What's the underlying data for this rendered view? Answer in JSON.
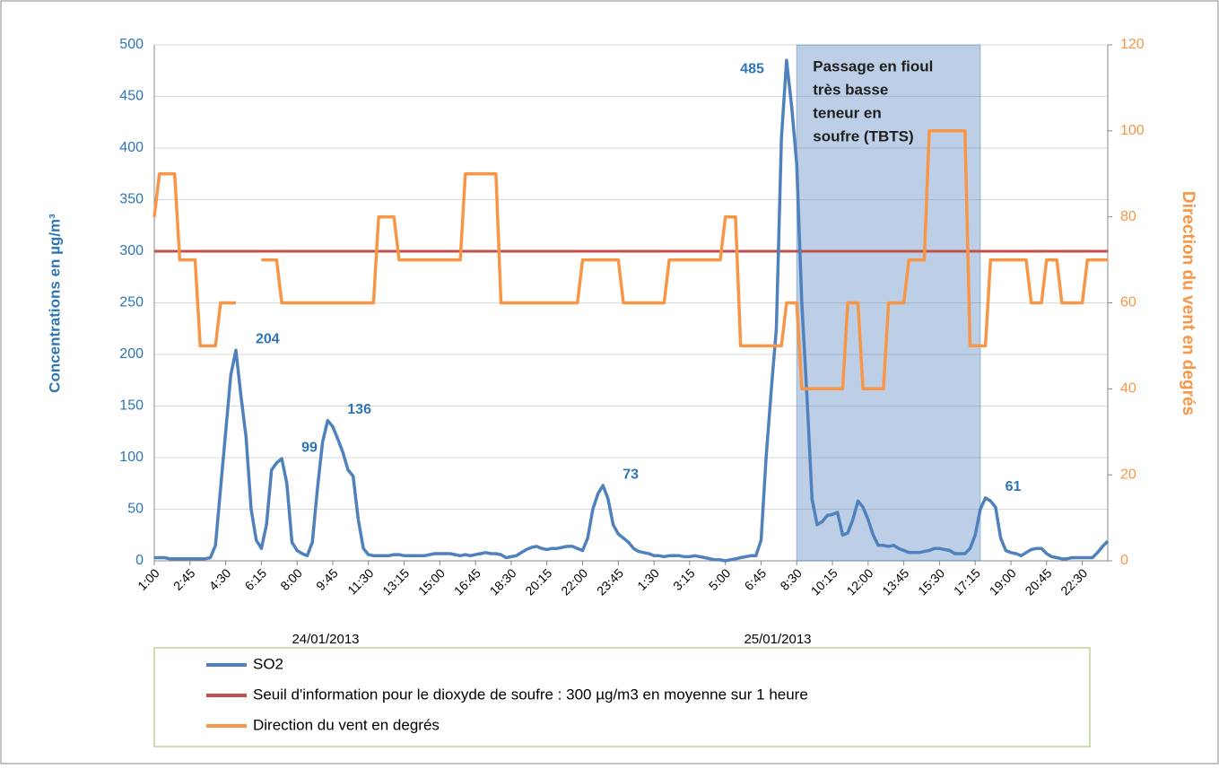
{
  "chart_data": {
    "type": "line",
    "y_label": "Concentrations en µg/m³",
    "y2_label": "Direction du vent en degrés",
    "categories": [
      "1:00",
      null,
      null,
      null,
      null,
      null,
      null,
      "2:45",
      null,
      null,
      null,
      null,
      null,
      null,
      "4:30",
      null,
      null,
      null,
      null,
      null,
      null,
      "6:15",
      null,
      null,
      null,
      null,
      null,
      null,
      "8:00",
      null,
      null,
      null,
      null,
      null,
      null,
      "9:45",
      null,
      null,
      null,
      null,
      null,
      null,
      "11:30",
      null,
      null,
      null,
      null,
      null,
      null,
      "13:15",
      null,
      null,
      null,
      null,
      null,
      null,
      "15:00",
      null,
      null,
      null,
      null,
      null,
      null,
      "16:45",
      null,
      null,
      null,
      null,
      null,
      null,
      "18:30",
      null,
      null,
      null,
      null,
      null,
      null,
      "20:15",
      null,
      null,
      null,
      null,
      null,
      null,
      "22:00",
      null,
      null,
      null,
      null,
      null,
      null,
      "23:45",
      null,
      null,
      null,
      null,
      null,
      null,
      "1:30",
      null,
      null,
      null,
      null,
      null,
      null,
      "3:15",
      null,
      null,
      null,
      null,
      null,
      null,
      "5:00",
      null,
      null,
      null,
      null,
      null,
      null,
      "6:45",
      null,
      null,
      null,
      null,
      null,
      null,
      "8:30",
      null,
      null,
      null,
      null,
      null,
      null,
      "10:15",
      null,
      null,
      null,
      null,
      null,
      null,
      "12:00",
      null,
      null,
      null,
      null,
      null,
      null,
      "13:45",
      null,
      null,
      null,
      null,
      null,
      null,
      "15:30",
      null,
      null,
      null,
      null,
      null,
      null,
      "17:15",
      null,
      null,
      null,
      null,
      null,
      null,
      "19:00",
      null,
      null,
      null,
      null,
      null,
      null,
      "20:45",
      null,
      null,
      null,
      null,
      null,
      null,
      "22:30",
      null,
      null,
      null,
      null,
      null
    ],
    "date_labels": [
      "24/01/2013",
      "25/01/2013"
    ],
    "series": [
      {
        "name": "SO2",
        "color": "#4f81bd",
        "axis": "y",
        "labeled_points": [
          16,
          25,
          34,
          88,
          124,
          163
        ],
        "values": [
          3,
          3,
          3,
          2,
          2,
          2,
          2,
          2,
          2,
          2,
          2,
          3,
          15,
          70,
          125,
          180,
          204,
          160,
          120,
          50,
          20,
          12,
          35,
          88,
          95,
          99,
          75,
          18,
          10,
          7,
          5,
          18,
          70,
          115,
          136,
          130,
          118,
          105,
          88,
          82,
          40,
          12,
          6,
          5,
          5,
          5,
          5,
          6,
          6,
          5,
          5,
          5,
          5,
          5,
          6,
          7,
          7,
          7,
          7,
          6,
          5,
          6,
          5,
          6,
          7,
          8,
          7,
          7,
          6,
          3,
          4,
          5,
          8,
          11,
          13,
          14,
          12,
          11,
          12,
          12,
          13,
          14,
          14,
          12,
          10,
          22,
          50,
          65,
          73,
          60,
          35,
          26,
          22,
          18,
          12,
          9,
          8,
          7,
          5,
          5,
          4,
          5,
          5,
          5,
          4,
          4,
          5,
          4,
          3,
          2,
          1,
          1,
          0,
          1,
          2,
          3,
          4,
          5,
          5,
          20,
          100,
          165,
          225,
          410,
          485,
          440,
          385,
          250,
          160,
          60,
          35,
          38,
          44,
          45,
          47,
          25,
          27,
          40,
          58,
          52,
          40,
          25,
          15,
          15,
          14,
          15,
          12,
          10,
          8,
          8,
          8,
          9,
          10,
          12,
          12,
          11,
          10,
          7,
          7,
          7,
          12,
          25,
          50,
          61,
          58,
          52,
          22,
          10,
          8,
          7,
          5,
          8,
          11,
          12,
          12,
          7,
          4,
          3,
          2,
          2,
          3,
          3,
          3,
          3,
          3,
          8,
          14,
          19
        ]
      },
      {
        "name": "Direction du vent en degrés",
        "color": "#f79646",
        "axis": "y2",
        "values": [
          80,
          90,
          90,
          90,
          90,
          70,
          70,
          70,
          70,
          50,
          50,
          50,
          50,
          60,
          60,
          60,
          60,
          null,
          null,
          null,
          null,
          70,
          70,
          70,
          70,
          60,
          60,
          60,
          60,
          60,
          60,
          60,
          60,
          60,
          60,
          60,
          60,
          60,
          60,
          60,
          60,
          60,
          60,
          60,
          80,
          80,
          80,
          80,
          70,
          70,
          70,
          70,
          70,
          70,
          70,
          70,
          70,
          70,
          70,
          70,
          70,
          90,
          90,
          90,
          90,
          90,
          90,
          90,
          60,
          60,
          60,
          60,
          60,
          60,
          60,
          60,
          60,
          60,
          60,
          60,
          60,
          60,
          60,
          60,
          70,
          70,
          70,
          70,
          70,
          70,
          70,
          70,
          60,
          60,
          60,
          60,
          60,
          60,
          60,
          60,
          60,
          70,
          70,
          70,
          70,
          70,
          70,
          70,
          70,
          70,
          70,
          70,
          80,
          80,
          80,
          50,
          50,
          50,
          50,
          50,
          50,
          50,
          50,
          50,
          60,
          60,
          60,
          40,
          40,
          40,
          40,
          40,
          40,
          40,
          40,
          40,
          60,
          60,
          60,
          40,
          40,
          40,
          40,
          40,
          60,
          60,
          60,
          60,
          70,
          70,
          70,
          70,
          100,
          100,
          100,
          100,
          100,
          100,
          100,
          100,
          50,
          50,
          50,
          50,
          70,
          70,
          70,
          70,
          70,
          70,
          70,
          70,
          60,
          60,
          60,
          70,
          70,
          70,
          60,
          60,
          60,
          60,
          60,
          70,
          70,
          70,
          70,
          70
        ]
      }
    ],
    "threshold": {
      "name": "Seuil d'information pour le dioxyde de soufre : 300 µg/m3 en moyenne sur 1 heure",
      "color": "#c0504d",
      "value": 300
    },
    "legend_order": [
      "series.0",
      "threshold",
      "series.1"
    ],
    "highlight": {
      "lines": [
        "Passage en fioul",
        "très basse",
        "teneur en",
        "soufre (TBTS)"
      ],
      "start": 126,
      "end": 162,
      "color": "#4f81bd"
    },
    "ylim": [
      0,
      500
    ],
    "yticks": [
      0,
      50,
      100,
      150,
      200,
      250,
      300,
      350,
      400,
      450,
      500
    ],
    "y2lim": [
      0,
      120
    ],
    "y2ticks": [
      0,
      20,
      40,
      60,
      80,
      100,
      120
    ],
    "grid": true
  }
}
